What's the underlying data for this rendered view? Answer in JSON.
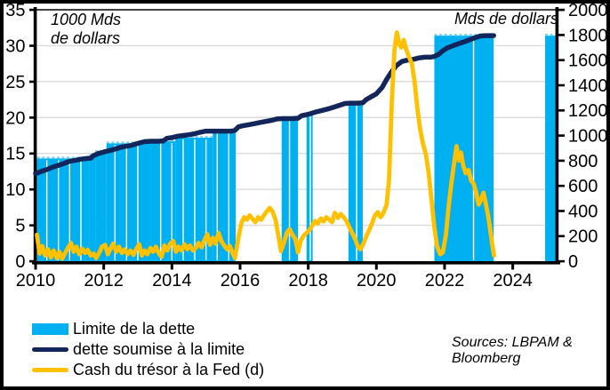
{
  "colors": {
    "bar_blue": "#00B0F0",
    "bar_top_dash": "#7ED5F6",
    "debt_navy": "#13265C",
    "cash_yellow": "#FFC000",
    "grid_gray": "#D9D9D9",
    "axis_black": "#000000",
    "background": "#FFFFFF"
  },
  "annotations": {
    "left_axis_unit": "1000 Mds de dollars",
    "right_axis_unit": "Mds de dollars"
  },
  "legend": {
    "items": [
      {
        "label": "Limite de la dette",
        "swatch": "bar",
        "color": "#00B0F0"
      },
      {
        "label": "dette soumise à la limite",
        "swatch": "line",
        "color": "#13265C"
      },
      {
        "label": "Cash du trésor à la Fed (d)",
        "swatch": "line",
        "color": "#FFC000"
      }
    ]
  },
  "sources": {
    "line1": "Sources: LBPAM &",
    "line2": "Bloomberg"
  },
  "chart_data": {
    "type": "combo",
    "title": "",
    "grid": "horizontal",
    "legend_position": "bottom-left",
    "x_axis": {
      "range": [
        2010,
        2025.3
      ],
      "ticks": [
        2010,
        2012,
        2014,
        2016,
        2018,
        2020,
        2022,
        2024
      ]
    },
    "left_axis": {
      "label": "1000 Mds de dollars",
      "range": [
        0,
        35
      ],
      "ticks": [
        0,
        5,
        10,
        15,
        20,
        25,
        30,
        35
      ]
    },
    "right_axis": {
      "label": "Mds de dollars",
      "range": [
        0,
        2000
      ],
      "ticks": [
        0,
        200,
        400,
        600,
        800,
        1000,
        1200,
        1400,
        1600,
        1800,
        2000
      ]
    },
    "series": [
      {
        "name": "Limite de la dette",
        "type": "bar",
        "axis": "left",
        "color": "#00B0F0",
        "segments": [
          [
            2010.04,
            2011.58,
            14.3
          ],
          [
            2011.58,
            2011.75,
            14.7
          ],
          [
            2011.75,
            2012.08,
            15.2
          ],
          [
            2012.08,
            2013.38,
            16.4
          ],
          [
            2013.38,
            2014.1,
            16.7
          ],
          [
            2014.1,
            2015.2,
            17.2
          ],
          [
            2015.2,
            2015.87,
            18.1
          ],
          [
            2017.22,
            2017.7,
            19.85
          ],
          [
            2017.95,
            2018.13,
            20.5
          ],
          [
            2019.18,
            2019.6,
            22.0
          ],
          [
            2021.7,
            2023.44,
            31.4
          ],
          [
            2024.95,
            2025.28,
            31.4
          ]
        ],
        "separators": [
          2010.33,
          2010.67,
          2011.0,
          2011.33,
          2012.33,
          2012.67,
          2013.0,
          2013.67,
          2014.0,
          2014.33,
          2014.67,
          2015.0,
          2015.33,
          2015.67,
          2017.45,
          2018.06,
          2019.42,
          2022.85
        ]
      },
      {
        "name": "dette soumise à la limite",
        "type": "line",
        "axis": "left",
        "color": "#13265C",
        "points": [
          [
            2010.0,
            12.2
          ],
          [
            2010.17,
            12.5
          ],
          [
            2010.33,
            12.75
          ],
          [
            2010.5,
            13.1
          ],
          [
            2010.67,
            13.35
          ],
          [
            2010.83,
            13.6
          ],
          [
            2011.0,
            13.9
          ],
          [
            2011.17,
            14.05
          ],
          [
            2011.33,
            14.2
          ],
          [
            2011.5,
            14.3
          ],
          [
            2011.62,
            14.35
          ],
          [
            2011.7,
            14.7
          ],
          [
            2011.85,
            15.0
          ],
          [
            2012.0,
            15.2
          ],
          [
            2012.17,
            15.4
          ],
          [
            2012.33,
            15.6
          ],
          [
            2012.5,
            15.85
          ],
          [
            2012.67,
            16.0
          ],
          [
            2012.83,
            16.15
          ],
          [
            2013.0,
            16.4
          ],
          [
            2013.2,
            16.65
          ],
          [
            2013.4,
            16.7
          ],
          [
            2013.6,
            16.7
          ],
          [
            2013.75,
            16.75
          ],
          [
            2013.85,
            17.1
          ],
          [
            2014.0,
            17.2
          ],
          [
            2014.17,
            17.4
          ],
          [
            2014.33,
            17.5
          ],
          [
            2014.5,
            17.6
          ],
          [
            2014.67,
            17.75
          ],
          [
            2014.83,
            17.95
          ],
          [
            2015.0,
            18.1
          ],
          [
            2015.25,
            18.1
          ],
          [
            2015.5,
            18.1
          ],
          [
            2015.75,
            18.1
          ],
          [
            2015.85,
            18.2
          ],
          [
            2015.95,
            18.7
          ],
          [
            2016.08,
            18.85
          ],
          [
            2016.25,
            19.0
          ],
          [
            2016.42,
            19.15
          ],
          [
            2016.58,
            19.3
          ],
          [
            2016.75,
            19.45
          ],
          [
            2016.92,
            19.6
          ],
          [
            2017.08,
            19.8
          ],
          [
            2017.25,
            19.85
          ],
          [
            2017.5,
            19.85
          ],
          [
            2017.7,
            19.9
          ],
          [
            2017.8,
            20.25
          ],
          [
            2017.95,
            20.4
          ],
          [
            2018.08,
            20.55
          ],
          [
            2018.25,
            20.8
          ],
          [
            2018.42,
            21.0
          ],
          [
            2018.58,
            21.2
          ],
          [
            2018.75,
            21.45
          ],
          [
            2018.92,
            21.7
          ],
          [
            2019.08,
            21.95
          ],
          [
            2019.25,
            22.0
          ],
          [
            2019.45,
            22.0
          ],
          [
            2019.6,
            22.05
          ],
          [
            2019.7,
            22.5
          ],
          [
            2019.85,
            22.9
          ],
          [
            2020.0,
            23.3
          ],
          [
            2020.17,
            24.2
          ],
          [
            2020.3,
            25.3
          ],
          [
            2020.42,
            26.2
          ],
          [
            2020.58,
            27.2
          ],
          [
            2020.75,
            27.8
          ],
          [
            2020.92,
            28.0
          ],
          [
            2021.08,
            28.1
          ],
          [
            2021.25,
            28.3
          ],
          [
            2021.42,
            28.4
          ],
          [
            2021.58,
            28.4
          ],
          [
            2021.7,
            28.5
          ],
          [
            2021.83,
            28.8
          ],
          [
            2021.95,
            29.3
          ],
          [
            2022.08,
            29.7
          ],
          [
            2022.25,
            30.0
          ],
          [
            2022.42,
            30.3
          ],
          [
            2022.58,
            30.55
          ],
          [
            2022.75,
            30.85
          ],
          [
            2022.92,
            31.15
          ],
          [
            2023.05,
            31.35
          ],
          [
            2023.2,
            31.4
          ],
          [
            2023.44,
            31.4
          ]
        ]
      },
      {
        "name": "Cash du trésor à la Fed (d)",
        "type": "line",
        "axis": "right",
        "color": "#FFC000",
        "points": [
          [
            2010.04,
            210
          ],
          [
            2010.12,
            60
          ],
          [
            2010.2,
            120
          ],
          [
            2010.28,
            45
          ],
          [
            2010.37,
            95
          ],
          [
            2010.45,
            30
          ],
          [
            2010.53,
            85
          ],
          [
            2010.62,
            25
          ],
          [
            2010.7,
            75
          ],
          [
            2010.78,
            20
          ],
          [
            2010.87,
            65
          ],
          [
            2010.95,
            105
          ],
          [
            2011.04,
            145
          ],
          [
            2011.12,
            75
          ],
          [
            2011.2,
            115
          ],
          [
            2011.28,
            55
          ],
          [
            2011.37,
            100
          ],
          [
            2011.45,
            65
          ],
          [
            2011.53,
            90
          ],
          [
            2011.62,
            45
          ],
          [
            2011.7,
            60
          ],
          [
            2011.78,
            25
          ],
          [
            2011.87,
            70
          ],
          [
            2011.95,
            115
          ],
          [
            2012.04,
            130
          ],
          [
            2012.12,
            55
          ],
          [
            2012.2,
            100
          ],
          [
            2012.28,
            140
          ],
          [
            2012.37,
            75
          ],
          [
            2012.45,
            115
          ],
          [
            2012.53,
            65
          ],
          [
            2012.62,
            95
          ],
          [
            2012.7,
            55
          ],
          [
            2012.78,
            85
          ],
          [
            2012.87,
            50
          ],
          [
            2012.95,
            95
          ],
          [
            2013.04,
            135
          ],
          [
            2013.12,
            45
          ],
          [
            2013.2,
            85
          ],
          [
            2013.28,
            55
          ],
          [
            2013.37,
            105
          ],
          [
            2013.45,
            75
          ],
          [
            2013.53,
            115
          ],
          [
            2013.62,
            60
          ],
          [
            2013.7,
            35
          ],
          [
            2013.78,
            125
          ],
          [
            2013.87,
            85
          ],
          [
            2013.95,
            140
          ],
          [
            2014.04,
            160
          ],
          [
            2014.12,
            75
          ],
          [
            2014.2,
            115
          ],
          [
            2014.28,
            85
          ],
          [
            2014.37,
            135
          ],
          [
            2014.45,
            95
          ],
          [
            2014.53,
            125
          ],
          [
            2014.62,
            85
          ],
          [
            2014.7,
            105
          ],
          [
            2014.78,
            145
          ],
          [
            2014.87,
            110
          ],
          [
            2014.95,
            165
          ],
          [
            2015.04,
            215
          ],
          [
            2015.12,
            130
          ],
          [
            2015.2,
            185
          ],
          [
            2015.28,
            140
          ],
          [
            2015.37,
            225
          ],
          [
            2015.45,
            160
          ],
          [
            2015.53,
            125
          ],
          [
            2015.62,
            95
          ],
          [
            2015.7,
            120
          ],
          [
            2015.78,
            65
          ],
          [
            2015.85,
            25
          ],
          [
            2015.95,
            185
          ],
          [
            2016.04,
            305
          ],
          [
            2016.12,
            350
          ],
          [
            2016.2,
            330
          ],
          [
            2016.28,
            365
          ],
          [
            2016.37,
            335
          ],
          [
            2016.45,
            310
          ],
          [
            2016.53,
            350
          ],
          [
            2016.62,
            330
          ],
          [
            2016.7,
            365
          ],
          [
            2016.78,
            395
          ],
          [
            2016.87,
            425
          ],
          [
            2016.95,
            395
          ],
          [
            2017.04,
            330
          ],
          [
            2017.12,
            210
          ],
          [
            2017.2,
            80
          ],
          [
            2017.28,
            140
          ],
          [
            2017.37,
            225
          ],
          [
            2017.45,
            255
          ],
          [
            2017.53,
            215
          ],
          [
            2017.62,
            175
          ],
          [
            2017.7,
            70
          ],
          [
            2017.78,
            165
          ],
          [
            2017.87,
            205
          ],
          [
            2017.95,
            225
          ],
          [
            2018.04,
            250
          ],
          [
            2018.12,
            285
          ],
          [
            2018.2,
            320
          ],
          [
            2018.28,
            300
          ],
          [
            2018.37,
            340
          ],
          [
            2018.45,
            315
          ],
          [
            2018.53,
            350
          ],
          [
            2018.62,
            330
          ],
          [
            2018.7,
            310
          ],
          [
            2018.78,
            385
          ],
          [
            2018.87,
            345
          ],
          [
            2018.95,
            375
          ],
          [
            2019.04,
            350
          ],
          [
            2019.12,
            320
          ],
          [
            2019.2,
            275
          ],
          [
            2019.28,
            230
          ],
          [
            2019.37,
            180
          ],
          [
            2019.45,
            120
          ],
          [
            2019.53,
            95
          ],
          [
            2019.62,
            140
          ],
          [
            2019.7,
            195
          ],
          [
            2019.78,
            245
          ],
          [
            2019.87,
            300
          ],
          [
            2019.95,
            360
          ],
          [
            2020.04,
            390
          ],
          [
            2020.12,
            350
          ],
          [
            2020.2,
            380
          ],
          [
            2020.3,
            450
          ],
          [
            2020.37,
            650
          ],
          [
            2020.45,
            1250
          ],
          [
            2020.53,
            1680
          ],
          [
            2020.6,
            1820
          ],
          [
            2020.67,
            1730
          ],
          [
            2020.73,
            1700
          ],
          [
            2020.8,
            1760
          ],
          [
            2020.87,
            1690
          ],
          [
            2020.95,
            1630
          ],
          [
            2021.04,
            1570
          ],
          [
            2021.12,
            1430
          ],
          [
            2021.2,
            1220
          ],
          [
            2021.28,
            1050
          ],
          [
            2021.37,
            930
          ],
          [
            2021.45,
            850
          ],
          [
            2021.53,
            710
          ],
          [
            2021.62,
            480
          ],
          [
            2021.7,
            270
          ],
          [
            2021.78,
            120
          ],
          [
            2021.87,
            55
          ],
          [
            2021.95,
            70
          ],
          [
            2022.04,
            210
          ],
          [
            2022.12,
            440
          ],
          [
            2022.2,
            620
          ],
          [
            2022.28,
            780
          ],
          [
            2022.35,
            915
          ],
          [
            2022.42,
            800
          ],
          [
            2022.48,
            865
          ],
          [
            2022.55,
            760
          ],
          [
            2022.62,
            700
          ],
          [
            2022.7,
            725
          ],
          [
            2022.78,
            640
          ],
          [
            2022.85,
            620
          ],
          [
            2022.92,
            555
          ],
          [
            2023.0,
            450
          ],
          [
            2023.07,
            490
          ],
          [
            2023.14,
            545
          ],
          [
            2023.2,
            470
          ],
          [
            2023.28,
            360
          ],
          [
            2023.35,
            230
          ],
          [
            2023.4,
            130
          ],
          [
            2023.45,
            45
          ]
        ]
      }
    ],
    "source_note": "Sources: LBPAM & Bloomberg"
  }
}
